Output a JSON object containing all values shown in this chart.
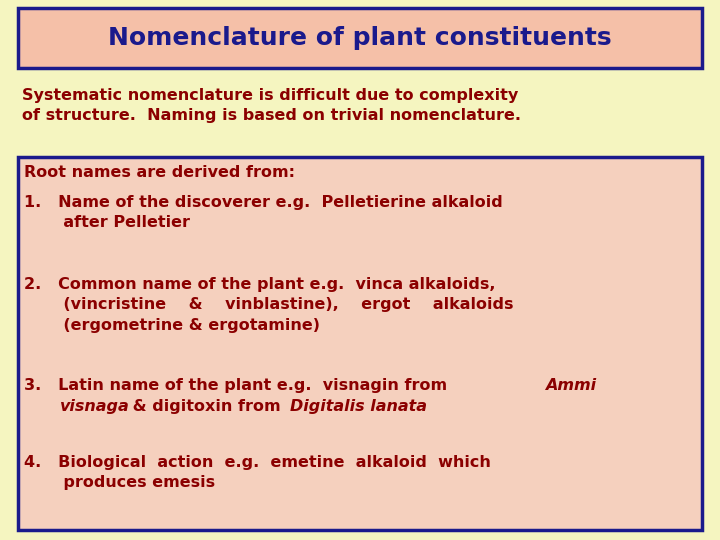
{
  "title": "Nomenclature of plant constituents",
  "title_color": "#1a1a8c",
  "title_bg": "#f5c0a8",
  "title_border": "#1a1a8c",
  "bg_color": "#f5f5c0",
  "intro_line1": "Systematic nomenclature is difficult due to complexity",
  "intro_line2": "of structure.  Naming is based on trivial nomenclature.",
  "intro_color": "#8b0000",
  "box_bg": "#f5d0be",
  "box_border": "#1a1a8c",
  "body_color": "#8b0000",
  "root_header": "Root names are derived from:",
  "title_fontsize": 18,
  "body_fontsize": 11.5,
  "intro_fontsize": 11.5
}
